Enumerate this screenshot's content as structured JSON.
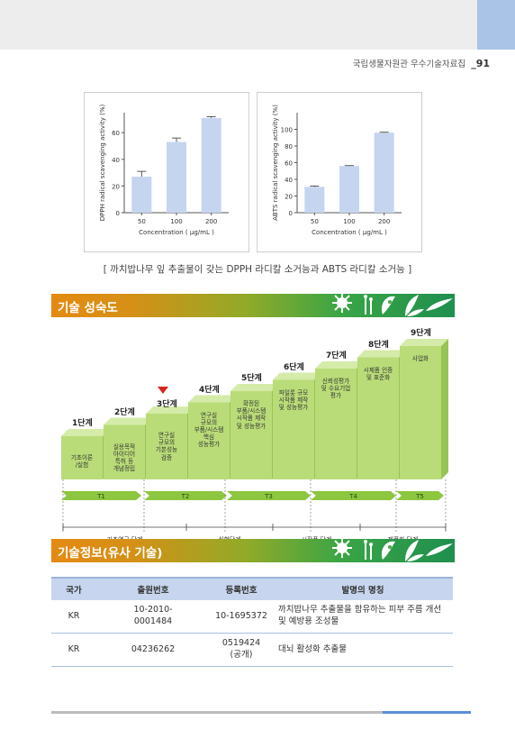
{
  "header": {
    "org_title": "국립생물자원관 우수기술자료집",
    "page_number": "91"
  },
  "figure": {
    "caption": "[ 까치밥나무 잎 추출물이 갖는 DPPH 라디칼 소거능과 ABTS 라디칼 소거능 ]",
    "chart_data": [
      {
        "type": "bar",
        "ylabel": "DPPH radical scavenging activity (%)",
        "xlabel": "Concentration ( μg/mL )",
        "categories": [
          "50",
          "100",
          "200"
        ],
        "values": [
          27,
          53,
          71
        ],
        "errors": [
          4,
          3,
          1
        ],
        "ylim": [
          0,
          75
        ],
        "yticks": [
          "0",
          "20",
          "40",
          "60"
        ],
        "bar_color": "#c5d5ef"
      },
      {
        "type": "bar",
        "ylabel": "ABTS radical scavenging activity (%)",
        "xlabel": "Concentration ( μg/mL )",
        "categories": [
          "50",
          "100",
          "200"
        ],
        "values": [
          31,
          56,
          96
        ],
        "errors": [
          1,
          0.5,
          0.5
        ],
        "ylim": [
          0,
          120
        ],
        "yticks": [
          "0",
          "20",
          "40",
          "60",
          "80",
          "100"
        ],
        "bar_color": "#c5d5ef"
      }
    ]
  },
  "section1": {
    "title": "기술 성숙도",
    "steps": [
      {
        "label": "1단계",
        "text": "기초이론\n/실험"
      },
      {
        "label": "2단계",
        "text": "실용목적\n아이디어\n특허 등\n개념정립"
      },
      {
        "label": "3단계",
        "text": "연구실\n규모의\n기본성능\n검증"
      },
      {
        "label": "4단계",
        "text": "연구실\n규모의\n부품/시스템\n핵심\n성능평가"
      },
      {
        "label": "5단계",
        "text": "확정된\n부품/시스템\n시작품 제작\n및 성능평가"
      },
      {
        "label": "6단계",
        "text": "파일롯 규모\n시작품 제작\n및 성능평가"
      },
      {
        "label": "7단계",
        "text": "신뢰성평가\n및 수요기업\n평가"
      },
      {
        "label": "8단계",
        "text": "시제품 인증\n및 표준화"
      },
      {
        "label": "9단계",
        "text": "사업화"
      }
    ],
    "timeline": [
      "T1",
      "T2",
      "T3",
      "T4",
      "T5"
    ],
    "phases": [
      "기초연구 단계",
      "실험단계",
      "시작품 단계",
      "제품화 단계"
    ],
    "current_step": 3,
    "marker_color": "#d9261c",
    "block_color": "#b9dc78"
  },
  "section2": {
    "title": "기술정보(유사 기술)",
    "columns": [
      "국가",
      "출원번호",
      "등록번호",
      "발명의 명칭"
    ],
    "rows": [
      {
        "country": "KR",
        "app_no": "10-2010-\n0001484",
        "reg_no": "10-1695372",
        "title": "까치밥나무 추출물을 함유하는 피부 주름 개선 및 예방용 조성물"
      },
      {
        "country": "KR",
        "app_no": "04236262",
        "reg_no": "0519424\n(공개)",
        "title": "대뇌 활성화 추출물"
      }
    ]
  }
}
